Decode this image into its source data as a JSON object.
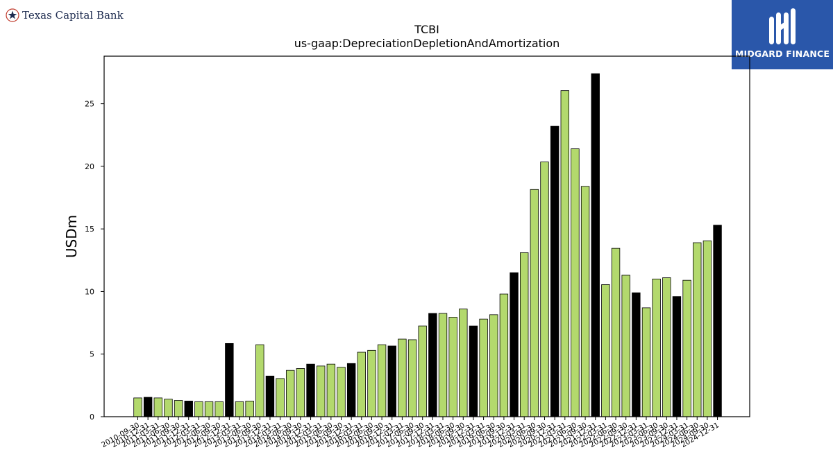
{
  "header": {
    "left_brand": "Texas Capital Bank",
    "right_brand": "MIDGARD FINANCE"
  },
  "colors": {
    "bar_fill": "#b3d96d",
    "highlight_fill": "#000000",
    "bar_edge": "#000000",
    "brand_blue": "#2a57aa"
  },
  "chart_data": {
    "type": "bar",
    "title": "TCBI",
    "subtitle": "us-gaap:DepreciationDepletionAndAmortization",
    "xlabel": "",
    "ylabel": "USDm",
    "ylim": [
      0,
      28.8
    ],
    "yticks": [
      0,
      5,
      10,
      15,
      20,
      25
    ],
    "grid": false,
    "legend": "none",
    "categories": [
      "2010-09-30",
      "2010-12-31",
      "2011-03-31",
      "2011-06-30",
      "2011-09-30",
      "2011-12-31",
      "2012-03-31",
      "2012-06-30",
      "2012-09-30",
      "2012-12-31",
      "2013-03-31",
      "2013-06-30",
      "2013-09-30",
      "2013-12-31",
      "2014-03-31",
      "2014-06-30",
      "2014-09-30",
      "2014-12-31",
      "2015-03-31",
      "2015-06-30",
      "2015-09-30",
      "2015-12-31",
      "2016-03-31",
      "2016-06-30",
      "2016-09-30",
      "2016-12-31",
      "2017-03-31",
      "2017-06-30",
      "2017-09-30",
      "2017-12-31",
      "2018-03-31",
      "2018-06-30",
      "2018-09-30",
      "2018-12-31",
      "2019-03-31",
      "2019-06-30",
      "2019-09-30",
      "2019-12-31",
      "2020-03-31",
      "2020-06-30",
      "2020-09-30",
      "2020-12-31",
      "2021-03-31",
      "2021-06-30",
      "2021-09-30",
      "2021-12-31",
      "2022-03-31",
      "2022-06-30",
      "2022-09-30",
      "2022-12-31",
      "2023-03-31",
      "2023-06-30",
      "2023-09-30",
      "2023-12-31",
      "2024-03-31",
      "2024-06-30",
      "2024-09-30",
      "2024-12-31"
    ],
    "values": [
      1.5,
      1.55,
      1.5,
      1.4,
      1.3,
      1.25,
      1.2,
      1.2,
      1.2,
      5.85,
      1.2,
      1.25,
      5.75,
      3.25,
      3.05,
      3.7,
      3.85,
      4.2,
      4.05,
      4.2,
      3.95,
      4.25,
      5.15,
      5.3,
      5.75,
      5.65,
      6.2,
      6.15,
      7.25,
      8.25,
      8.25,
      7.95,
      8.6,
      7.25,
      7.8,
      8.15,
      9.8,
      11.5,
      13.1,
      18.15,
      20.35,
      23.2,
      26.05,
      21.4,
      18.4,
      27.4,
      10.55,
      13.45,
      11.3,
      9.9,
      8.7,
      11.0,
      11.1,
      9.6,
      10.9,
      13.9,
      14.05,
      15.3
    ],
    "highlighted": [
      false,
      true,
      false,
      false,
      false,
      true,
      false,
      false,
      false,
      true,
      false,
      false,
      false,
      true,
      false,
      false,
      false,
      true,
      false,
      false,
      false,
      true,
      false,
      false,
      false,
      true,
      false,
      false,
      false,
      true,
      false,
      false,
      false,
      true,
      false,
      false,
      false,
      true,
      false,
      false,
      false,
      true,
      false,
      false,
      false,
      true,
      false,
      false,
      false,
      true,
      false,
      false,
      false,
      true,
      false,
      false,
      false,
      true
    ]
  }
}
